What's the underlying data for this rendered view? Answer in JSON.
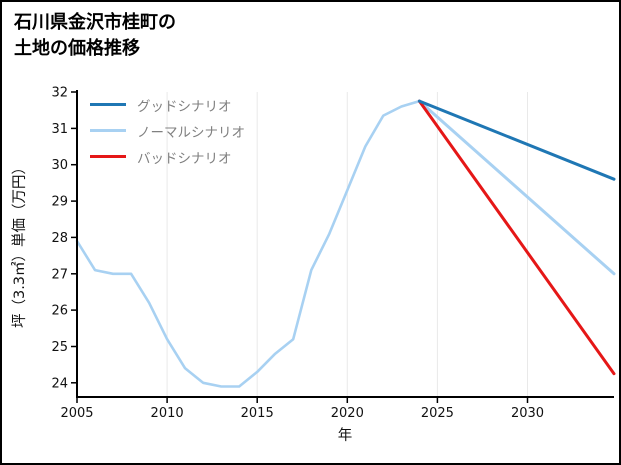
{
  "title": {
    "lines": [
      "石川県金沢市桂町の",
      "土地の価格推移"
    ]
  },
  "chart_data": {
    "type": "line",
    "title": "石川県金沢市桂町の土地の価格推移",
    "xlabel": "年",
    "ylabel": "坪（3.3㎡）単価（万円）",
    "xlim": [
      2005,
      2034.8
    ],
    "ylim": [
      23.61,
      32
    ],
    "xticks": [
      2005,
      2010,
      2015,
      2020,
      2025,
      2030
    ],
    "yticks": [
      24,
      25,
      26,
      27,
      28,
      29,
      30,
      31,
      32
    ],
    "grid": {
      "vertical": true,
      "horizontal": false,
      "color": "#e9e9e9"
    },
    "axis_color": "#000000",
    "tick_label_color": "#111111",
    "legend_text_color": "#808080",
    "legend_position": "upper-left",
    "legend": [
      {
        "id": "good",
        "label": "グッドシナリオ",
        "color": "#1f77b4"
      },
      {
        "id": "normal",
        "label": "ノーマルシナリオ",
        "color": "#a8d1f2"
      },
      {
        "id": "bad",
        "label": "バッドシナリオ",
        "color": "#e51717"
      }
    ],
    "series": [
      {
        "id": "history",
        "name": "ノーマルシナリオ",
        "color": "#a8d1f2",
        "width": 2.6,
        "points": [
          [
            2005,
            27.9
          ],
          [
            2006,
            27.1
          ],
          [
            2007,
            27.0
          ],
          [
            2008,
            27.0
          ],
          [
            2009,
            26.2
          ],
          [
            2010,
            25.2
          ],
          [
            2011,
            24.4
          ],
          [
            2012,
            24.0
          ],
          [
            2013,
            23.9
          ],
          [
            2014,
            23.9
          ],
          [
            2015,
            24.3
          ],
          [
            2016,
            24.8
          ],
          [
            2017,
            25.2
          ],
          [
            2018,
            27.1
          ],
          [
            2019,
            28.1
          ],
          [
            2020,
            29.3
          ],
          [
            2021,
            30.5
          ],
          [
            2022,
            31.35
          ],
          [
            2023,
            31.6
          ],
          [
            2024,
            31.75
          ]
        ]
      },
      {
        "id": "normal",
        "name": "ノーマルシナリオ",
        "color": "#a8d1f2",
        "width": 3,
        "points": [
          [
            2024,
            31.75
          ],
          [
            2034.8,
            27.0
          ]
        ]
      },
      {
        "id": "bad",
        "name": "バッドシナリオ",
        "color": "#e51717",
        "width": 3,
        "points": [
          [
            2024,
            31.75
          ],
          [
            2034.8,
            24.25
          ]
        ]
      },
      {
        "id": "good",
        "name": "グッドシナリオ",
        "color": "#1f77b4",
        "width": 3,
        "points": [
          [
            2024,
            31.75
          ],
          [
            2034.8,
            29.6
          ]
        ]
      }
    ]
  }
}
